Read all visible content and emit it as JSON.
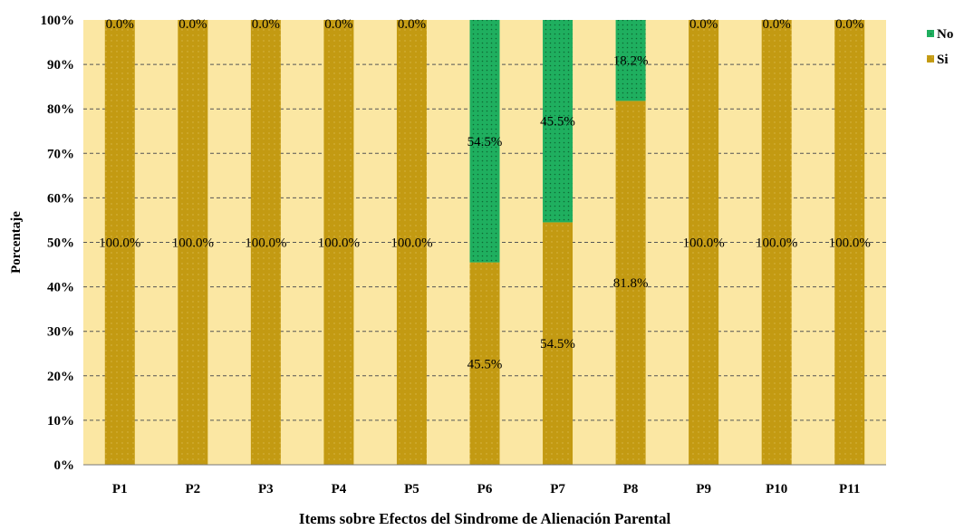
{
  "chart_data": {
    "type": "bar",
    "stacked": true,
    "percent_stacked": true,
    "categories": [
      "P1",
      "P2",
      "P3",
      "P4",
      "P5",
      "P6",
      "P7",
      "P8",
      "P9",
      "P10",
      "P11"
    ],
    "series": [
      {
        "name": "Si",
        "color": "#c39a12",
        "values": [
          100.0,
          100.0,
          100.0,
          100.0,
          100.0,
          45.5,
          54.5,
          81.8,
          100.0,
          100.0,
          100.0
        ],
        "labels": [
          "100.0%",
          "100.0%",
          "100.0%",
          "100.0%",
          "100.0%",
          "45.5%",
          "54.5%",
          "81.8%",
          "100.0%",
          "100.0%",
          "100.0%"
        ]
      },
      {
        "name": "No",
        "color": "#1faf5f",
        "values": [
          0.0,
          0.0,
          0.0,
          0.0,
          0.0,
          54.5,
          45.5,
          18.2,
          0.0,
          0.0,
          0.0
        ],
        "labels": [
          "0.0%",
          "0.0%",
          "0.0%",
          "0.0%",
          "0.0%",
          "54.5%",
          "45.5%",
          "18.2%",
          "0.0%",
          "0.0%",
          "0.0%"
        ]
      }
    ],
    "yticks": [
      "0%",
      "10%",
      "20%",
      "30%",
      "40%",
      "50%",
      "60%",
      "70%",
      "80%",
      "90%",
      "100%"
    ],
    "ylim": [
      0,
      100
    ],
    "title": "",
    "xlabel": "Items sobre Efectos del Sindrome de Alienación Parental",
    "ylabel": "Porcentaje",
    "grid": true,
    "legend_position": "top-right",
    "legend": [
      {
        "name": "No",
        "color": "#1faf5f"
      },
      {
        "name": "Si",
        "color": "#c39a12"
      }
    ],
    "plot_background": "#fbe7a3"
  }
}
